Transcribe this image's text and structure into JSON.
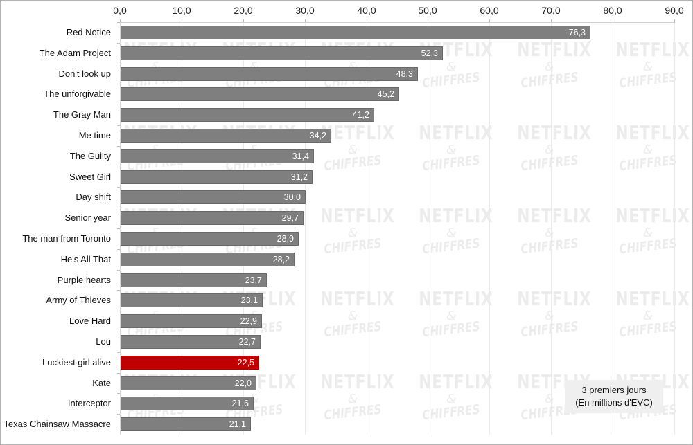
{
  "chart_data": {
    "type": "bar",
    "orientation": "horizontal",
    "title": "",
    "xlabel": "",
    "ylabel": "",
    "xlim": [
      0,
      90
    ],
    "x_ticks": [
      "0,0",
      "10,0",
      "20,0",
      "30,0",
      "40,0",
      "50,0",
      "60,0",
      "70,0",
      "80,0",
      "90,0"
    ],
    "grid": true,
    "legend_box": [
      "3 premiers jours",
      "(En millions d'EVC)"
    ],
    "highlight_color": "#c00000",
    "bar_color": "#7f7f7f",
    "categories": [
      "Red Notice",
      "The Adam Project",
      "Don't look up",
      "The unforgivable",
      "The Gray Man",
      "Me time",
      "The Guilty",
      "Sweet Girl",
      "Day shift",
      "Senior year",
      "The man from Toronto",
      "He's All That",
      "Purple hearts",
      "Army of Thieves",
      "Love Hard",
      "Lou",
      "Luckiest girl alive",
      "Kate",
      "Interceptor",
      "Texas Chainsaw Massacre"
    ],
    "values": [
      76.3,
      52.3,
      48.3,
      45.2,
      41.2,
      34.2,
      31.4,
      31.2,
      30.0,
      29.7,
      28.9,
      28.2,
      23.7,
      23.1,
      22.9,
      22.7,
      22.5,
      22.0,
      21.6,
      21.1
    ],
    "value_labels": [
      "76,3",
      "52,3",
      "48,3",
      "45,2",
      "41,2",
      "34,2",
      "31,4",
      "31,2",
      "30,0",
      "29,7",
      "28,9",
      "28,2",
      "23,7",
      "23,1",
      "22,9",
      "22,7",
      "22,5",
      "22,0",
      "21,6",
      "21,1"
    ],
    "highlighted": [
      "Luckiest girl alive"
    ]
  },
  "watermark": {
    "line1": "NETFLIX",
    "line2": "&",
    "line3": "CHIFFRES"
  },
  "legend": {
    "line1": "3 premiers jours",
    "line2": "(En millions d'EVC)"
  }
}
